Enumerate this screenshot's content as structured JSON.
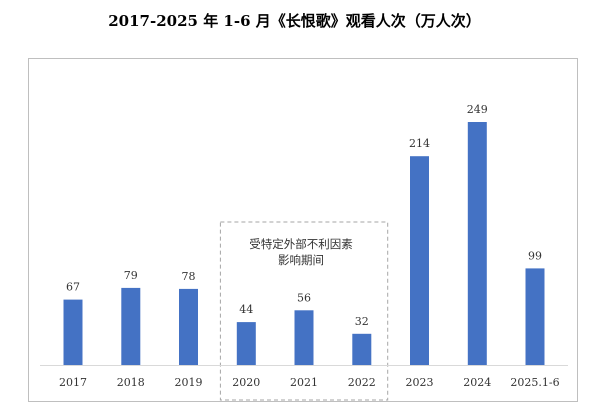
{
  "title": "2017-2025 年 1-6 月《长恨歌》观看人次（万人次）",
  "annotation": {
    "line1": "受特定外部不利因素",
    "line2": "影响期间",
    "covers_categories": [
      "2020",
      "2021",
      "2022"
    ]
  },
  "colors": {
    "bar": "#4472C4",
    "frame": "#BFBFBF",
    "annotation_box": "#A6A6A6",
    "axis": "#D9D9D9"
  },
  "chart_data": {
    "type": "bar",
    "title": "2017-2025 年 1-6 月《长恨歌》观看人次（万人次）",
    "categories": [
      "2017",
      "2018",
      "2019",
      "2020",
      "2021",
      "2022",
      "2023",
      "2024",
      "2025.1-6"
    ],
    "values": [
      67,
      79,
      78,
      44,
      56,
      32,
      214,
      249,
      99
    ],
    "data_labels": [
      "67",
      "79",
      "78",
      "44",
      "56",
      "32",
      "214",
      "249",
      "99"
    ],
    "xlabel": "",
    "ylabel": "",
    "ylim": [
      0,
      249
    ],
    "grid": false,
    "legend": "none"
  }
}
